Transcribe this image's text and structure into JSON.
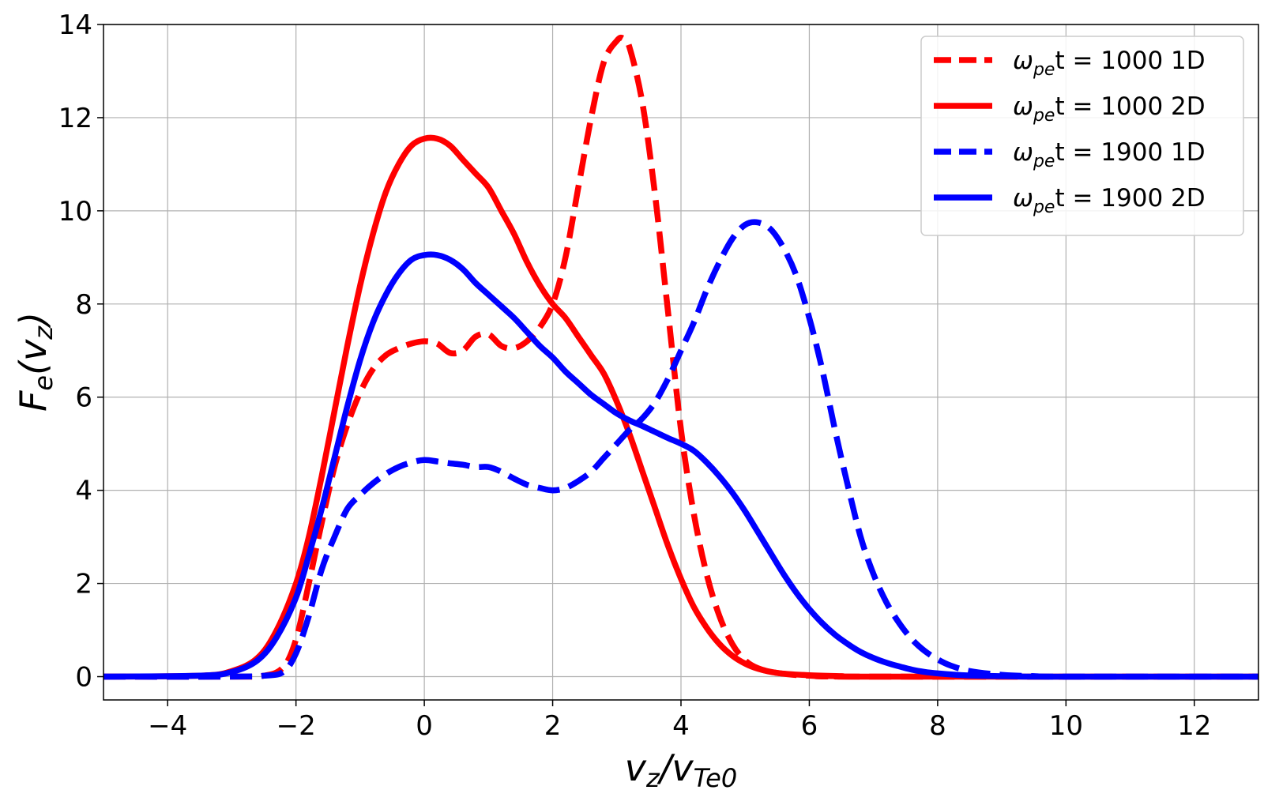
{
  "chart_data": {
    "type": "line",
    "title": "",
    "xlabel": "v_z/v_Te0",
    "xlabel_parts": {
      "main": "v",
      "sub1": "z",
      "slash": "/v",
      "sub2": "Te0"
    },
    "ylabel": "F_e(v_z)",
    "ylabel_parts": {
      "main": "F",
      "sub1": "e",
      "open": "(v",
      "sub2": "z",
      "close": ")"
    },
    "xlim": [
      -5,
      13
    ],
    "ylim": [
      -0.5,
      14
    ],
    "xticks": [
      -4,
      -2,
      0,
      2,
      4,
      6,
      8,
      10,
      12
    ],
    "yticks": [
      0,
      2,
      4,
      6,
      8,
      10,
      12,
      14
    ],
    "xtick_labels": [
      "−4",
      "−2",
      "0",
      "2",
      "4",
      "6",
      "8",
      "10",
      "12"
    ],
    "ytick_labels": [
      "0",
      "2",
      "4",
      "6",
      "8",
      "10",
      "12",
      "14"
    ],
    "grid": true,
    "legend_position": "top-right",
    "series": [
      {
        "name": "ω_pe t = 1000 1D",
        "label_parts": {
          "omega": "ω",
          "sub": "pe",
          "rest": "t = 1000 1D"
        },
        "color": "#ff0000",
        "dash": true,
        "x": [
          -5,
          -3,
          -2.5,
          -2.2,
          -2,
          -1.8,
          -1.6,
          -1.4,
          -1.2,
          -1,
          -0.8,
          -0.6,
          -0.4,
          -0.2,
          0,
          0.2,
          0.4,
          0.6,
          0.8,
          1,
          1.2,
          1.4,
          1.6,
          1.8,
          2,
          2.2,
          2.4,
          2.6,
          2.8,
          3,
          3.1,
          3.2,
          3.4,
          3.6,
          3.8,
          4,
          4.2,
          4.4,
          4.6,
          4.8,
          5,
          5.2,
          5.5,
          6,
          7,
          13
        ],
        "y": [
          0,
          0,
          0.02,
          0.2,
          0.8,
          2.0,
          3.3,
          4.5,
          5.4,
          6.1,
          6.6,
          6.9,
          7.05,
          7.15,
          7.2,
          7.15,
          6.95,
          7.0,
          7.3,
          7.35,
          7.1,
          7.05,
          7.2,
          7.5,
          8.0,
          9.0,
          10.5,
          12.0,
          13.2,
          13.65,
          13.7,
          13.5,
          12.3,
          10.3,
          7.8,
          5.3,
          3.5,
          2.2,
          1.3,
          0.7,
          0.35,
          0.18,
          0.08,
          0.02,
          0,
          0
        ]
      },
      {
        "name": "ω_pe t = 1000 2D",
        "label_parts": {
          "omega": "ω",
          "sub": "pe",
          "rest": "t = 1000 2D"
        },
        "color": "#ff0000",
        "dash": false,
        "x": [
          -5,
          -3.5,
          -3,
          -2.6,
          -2.3,
          -2,
          -1.8,
          -1.6,
          -1.4,
          -1.2,
          -1,
          -0.8,
          -0.6,
          -0.4,
          -0.2,
          0,
          0.2,
          0.4,
          0.6,
          0.8,
          1,
          1.2,
          1.4,
          1.6,
          1.8,
          2,
          2.2,
          2.4,
          2.6,
          2.8,
          3,
          3.2,
          3.4,
          3.6,
          3.8,
          4,
          4.2,
          4.4,
          4.6,
          4.8,
          5,
          5.2,
          5.5,
          6,
          6.5,
          7,
          13
        ],
        "y": [
          0,
          0.02,
          0.12,
          0.4,
          1.0,
          2.0,
          3.0,
          4.3,
          5.7,
          7.1,
          8.4,
          9.5,
          10.4,
          11.0,
          11.4,
          11.55,
          11.55,
          11.4,
          11.1,
          10.8,
          10.5,
          10.0,
          9.5,
          8.9,
          8.4,
          8.0,
          7.7,
          7.3,
          6.9,
          6.5,
          5.9,
          5.2,
          4.4,
          3.6,
          2.8,
          2.1,
          1.5,
          1.05,
          0.7,
          0.45,
          0.28,
          0.17,
          0.08,
          0.03,
          0.01,
          0,
          0
        ]
      },
      {
        "name": "ω_pe t = 1900 1D",
        "label_parts": {
          "omega": "ω",
          "sub": "pe",
          "rest": "t = 1900 1D"
        },
        "color": "#0000ff",
        "dash": true,
        "x": [
          -5,
          -3,
          -2.5,
          -2.2,
          -2,
          -1.8,
          -1.6,
          -1.4,
          -1.2,
          -1,
          -0.8,
          -0.6,
          -0.4,
          -0.2,
          0,
          0.2,
          0.4,
          0.6,
          0.8,
          1,
          1.2,
          1.4,
          1.6,
          1.8,
          2,
          2.2,
          2.4,
          2.6,
          2.8,
          3,
          3.2,
          3.4,
          3.6,
          3.8,
          4,
          4.2,
          4.4,
          4.6,
          4.8,
          5,
          5.2,
          5.4,
          5.6,
          5.8,
          6,
          6.2,
          6.4,
          6.6,
          6.8,
          7,
          7.2,
          7.4,
          7.6,
          7.8,
          8,
          8.2,
          8.5,
          9,
          9.5,
          10,
          13
        ],
        "y": [
          0,
          0,
          0.02,
          0.1,
          0.5,
          1.3,
          2.3,
          3.0,
          3.6,
          3.9,
          4.15,
          4.35,
          4.5,
          4.6,
          4.65,
          4.62,
          4.58,
          4.55,
          4.5,
          4.5,
          4.4,
          4.25,
          4.12,
          4.05,
          4.0,
          4.05,
          4.2,
          4.4,
          4.7,
          5.0,
          5.3,
          5.55,
          5.9,
          6.4,
          7.0,
          7.6,
          8.3,
          8.9,
          9.4,
          9.7,
          9.75,
          9.6,
          9.2,
          8.6,
          7.7,
          6.6,
          5.3,
          4.1,
          3.0,
          2.2,
          1.6,
          1.15,
          0.8,
          0.55,
          0.37,
          0.24,
          0.12,
          0.04,
          0.01,
          0,
          0
        ]
      },
      {
        "name": "ω_pe t = 1900 2D",
        "label_parts": {
          "omega": "ω",
          "sub": "pe",
          "rest": "t = 1900 2D"
        },
        "color": "#0000ff",
        "dash": false,
        "x": [
          -5,
          -3.5,
          -3,
          -2.6,
          -2.3,
          -2,
          -1.8,
          -1.6,
          -1.4,
          -1.2,
          -1,
          -0.8,
          -0.6,
          -0.4,
          -0.2,
          0,
          0.2,
          0.4,
          0.6,
          0.8,
          1,
          1.2,
          1.4,
          1.6,
          1.8,
          2,
          2.2,
          2.4,
          2.6,
          2.8,
          3,
          3.2,
          3.4,
          3.6,
          3.8,
          4,
          4.2,
          4.4,
          4.6,
          4.8,
          5,
          5.2,
          5.4,
          5.6,
          5.8,
          6,
          6.2,
          6.4,
          6.6,
          6.8,
          7,
          7.2,
          7.4,
          7.6,
          7.8,
          8,
          8.3,
          8.6,
          9,
          9.5,
          10,
          13
        ],
        "y": [
          0,
          0.02,
          0.1,
          0.35,
          0.85,
          1.7,
          2.6,
          3.6,
          4.7,
          5.8,
          6.8,
          7.6,
          8.2,
          8.65,
          8.95,
          9.05,
          9.05,
          8.95,
          8.75,
          8.45,
          8.2,
          7.95,
          7.7,
          7.4,
          7.1,
          6.85,
          6.55,
          6.3,
          6.05,
          5.85,
          5.65,
          5.5,
          5.38,
          5.25,
          5.12,
          5.0,
          4.85,
          4.6,
          4.3,
          3.95,
          3.55,
          3.1,
          2.65,
          2.2,
          1.8,
          1.45,
          1.15,
          0.9,
          0.7,
          0.53,
          0.4,
          0.3,
          0.22,
          0.15,
          0.1,
          0.07,
          0.04,
          0.02,
          0.01,
          0,
          0,
          0
        ]
      }
    ]
  }
}
